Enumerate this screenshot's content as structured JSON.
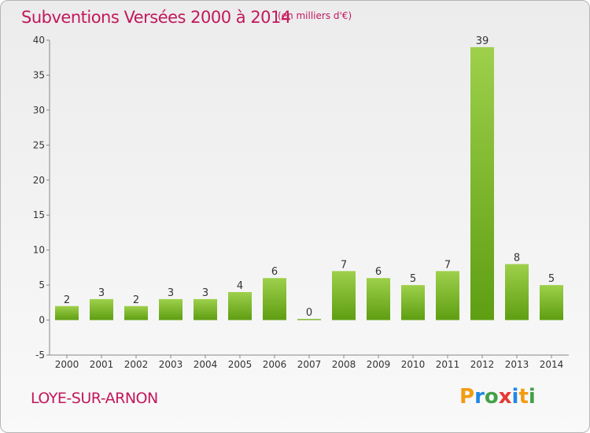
{
  "header": {
    "title": "Subventions Versées 2000 à 2014",
    "unit": "(en milliers d'€)"
  },
  "footer": {
    "commune": "LOYE-SUR-ARNON",
    "logo_letters": [
      "P",
      "r",
      "o",
      "x",
      "i",
      "t",
      "i"
    ]
  },
  "colors": {
    "accent": "#c2185b",
    "bar_light": "#9ed04b",
    "bar_dark": "#5e9e12"
  },
  "chart_data": {
    "type": "bar",
    "title": "Subventions Versées 2000 à 2014",
    "subtitle": "(en milliers d'€)",
    "xlabel": "",
    "ylabel": "",
    "categories": [
      "2000",
      "2001",
      "2002",
      "2003",
      "2004",
      "2005",
      "2006",
      "2007",
      "2008",
      "2009",
      "2010",
      "2011",
      "2012",
      "2013",
      "2014"
    ],
    "values": [
      2,
      3,
      2,
      3,
      3,
      4,
      6,
      0,
      7,
      6,
      5,
      7,
      39,
      8,
      5
    ],
    "ylim": [
      -5,
      40
    ],
    "yticks": [
      -5,
      0,
      5,
      10,
      15,
      20,
      25,
      30,
      35,
      40
    ],
    "grid": false,
    "legend": "none"
  }
}
